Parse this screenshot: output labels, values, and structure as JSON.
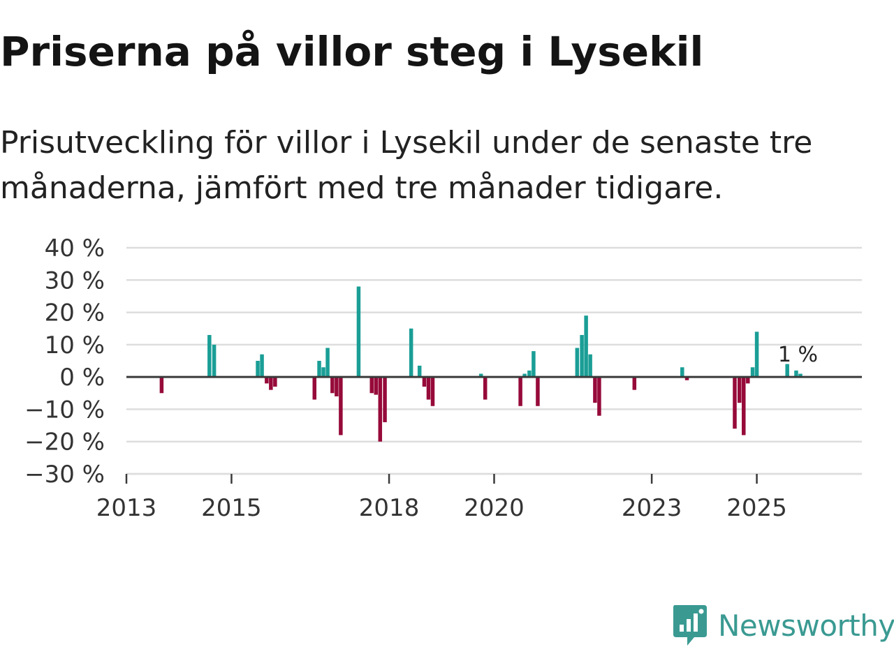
{
  "title": "Priserna på villor steg i Lysekil",
  "subtitle": "Prisutveckling för villor i Lysekil under de senaste tre månaderna, jämfört med tre månader tidigare.",
  "brand": {
    "name": "Newsworthy"
  },
  "colors": {
    "positive": "#1a9e96",
    "negative": "#960a3a",
    "grid": "#dddddd",
    "zero_line": "#3a3a3a",
    "text": "#333333"
  },
  "chart_data": {
    "type": "bar",
    "title": "Priserna på villor steg i Lysekil",
    "xlabel": "",
    "ylabel": "",
    "ylim": [
      -30,
      40
    ],
    "yticks": [
      40,
      30,
      20,
      10,
      0,
      -10,
      -20,
      -30
    ],
    "ytick_labels": [
      "40 %",
      "30 %",
      "20 %",
      "10 %",
      "0 %",
      "−10 %",
      "−20 %",
      "−30 %"
    ],
    "xlim": [
      2013,
      2027.0
    ],
    "xticks": [
      2013,
      2015,
      2018,
      2020,
      2023,
      2025
    ],
    "xtick_labels": [
      "2013",
      "2015",
      "2018",
      "2020",
      "2023",
      "2025"
    ],
    "last_value_label": "1 %",
    "series": [
      {
        "name": "Prisutveckling",
        "x": [
          2013.67,
          2014.58,
          2014.67,
          2015.5,
          2015.58,
          2015.67,
          2015.75,
          2015.83,
          2016.58,
          2016.67,
          2016.75,
          2016.83,
          2016.92,
          2017.0,
          2017.08,
          2017.42,
          2017.67,
          2017.75,
          2017.83,
          2017.92,
          2018.42,
          2018.58,
          2018.67,
          2018.75,
          2018.83,
          2019.75,
          2019.83,
          2020.5,
          2020.58,
          2020.67,
          2020.75,
          2020.83,
          2021.58,
          2021.67,
          2021.75,
          2021.83,
          2021.92,
          2022.0,
          2022.67,
          2023.58,
          2023.67,
          2024.58,
          2024.67,
          2024.75,
          2024.83,
          2024.92,
          2025.0,
          2025.58,
          2025.75,
          2025.83
        ],
        "values": [
          -5,
          13,
          10,
          5,
          7,
          -2,
          -4,
          -3,
          -7,
          5,
          3,
          9,
          -5,
          -6,
          -18,
          28,
          -5,
          -5.5,
          -20,
          -14,
          15,
          3.5,
          -3,
          -7,
          -9,
          1,
          -7,
          -9,
          1,
          2,
          8,
          -9,
          9,
          13,
          19,
          7,
          -8,
          -12,
          -4,
          3,
          -1,
          -16,
          -8,
          -18,
          -2,
          3,
          14,
          4,
          2,
          1
        ]
      }
    ]
  }
}
